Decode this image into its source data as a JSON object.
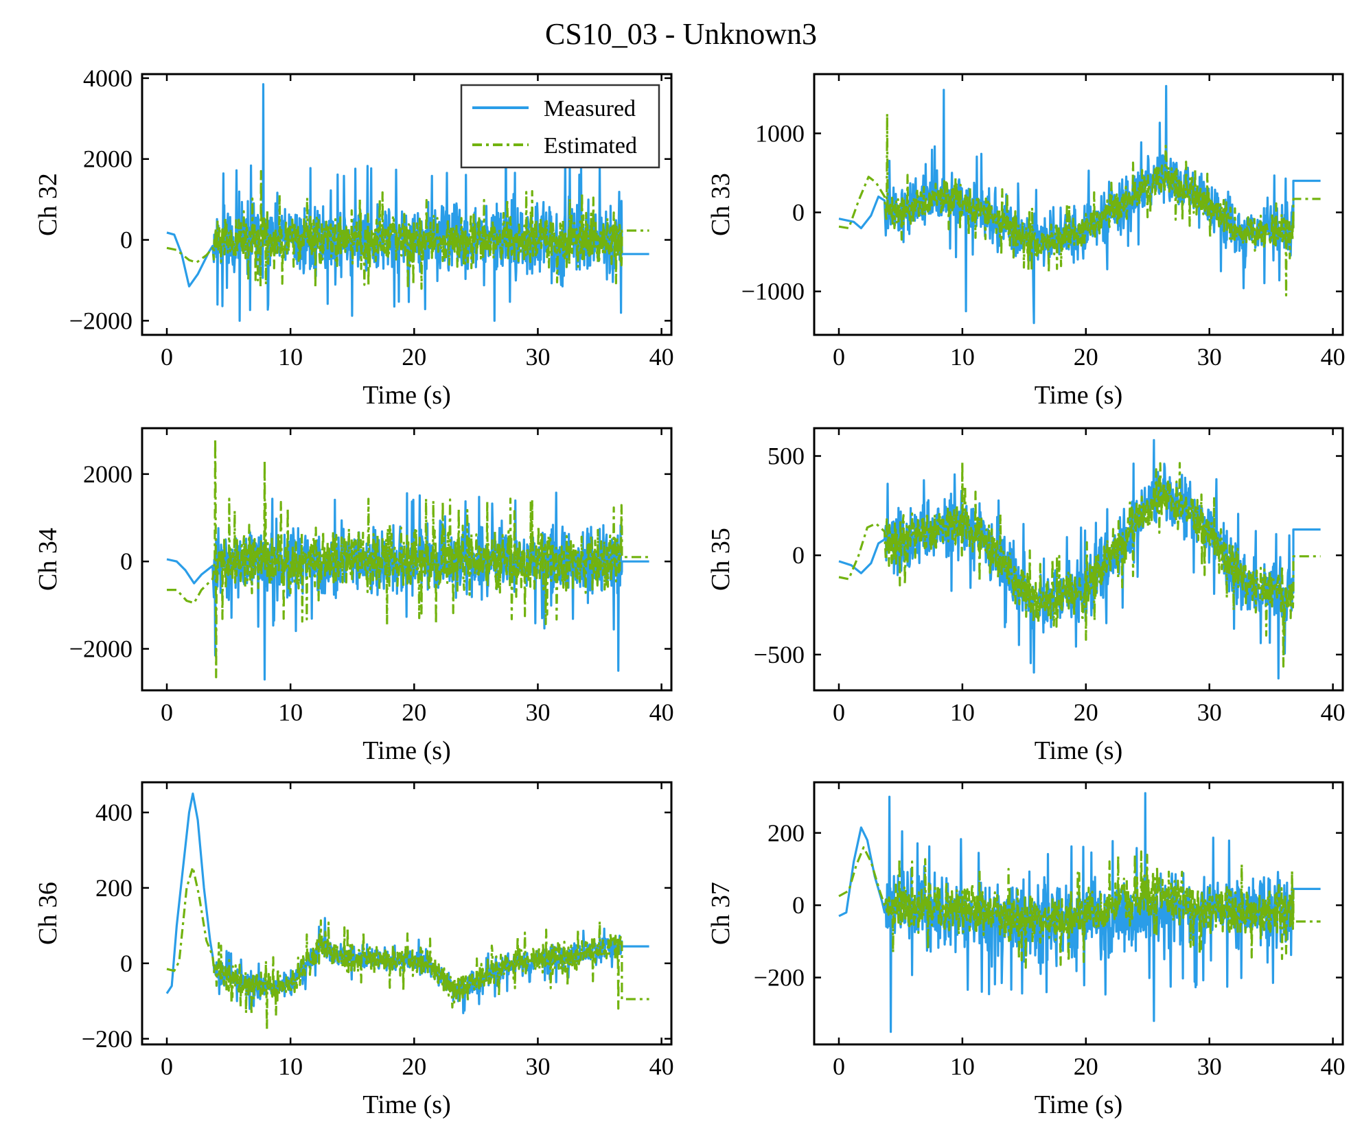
{
  "figure": {
    "title": "CS10_03 - Unknown3",
    "colors": {
      "measured": "#2a9de8",
      "estimated": "#72b30f"
    }
  },
  "legend": {
    "placement": "top-right",
    "items": [
      "Measured",
      "Estimated"
    ]
  },
  "chart_data": [
    {
      "type": "line",
      "ylabel": "Ch 32",
      "xlabel": "Time (s)",
      "xlim": [
        -2,
        40.8
      ],
      "ylim": [
        -2350,
        4100
      ],
      "xticks": [
        0,
        10,
        20,
        30,
        40
      ],
      "yticks": [
        -2000,
        0,
        2000,
        4000
      ],
      "measured": {
        "pre": [
          [
            0,
            180
          ],
          [
            0.6,
            130
          ],
          [
            1.2,
            -350
          ],
          [
            1.8,
            -1150
          ],
          [
            2.5,
            -850
          ],
          [
            3.4,
            -300
          ],
          [
            3.7,
            -150
          ]
        ],
        "noise_center": [
          [
            3.8,
            0
          ],
          [
            36.8,
            0
          ]
        ],
        "noise_amp": 1300,
        "end": [
          36.8,
          -350
        ],
        "end_x": 39,
        "spikes": [
          [
            7.8,
            3850
          ],
          [
            8.2,
            -1600
          ],
          [
            26.5,
            -2000
          ],
          [
            27.4,
            2700
          ],
          [
            32.2,
            2100
          ],
          [
            4.1,
            -1600
          ],
          [
            5.9,
            -2000
          ]
        ],
        "seed": 11
      },
      "estimated": {
        "pre": [
          [
            0,
            -200
          ],
          [
            0.8,
            -250
          ],
          [
            1.8,
            -500
          ],
          [
            2.4,
            -560
          ],
          [
            3.2,
            -380
          ],
          [
            3.7,
            -200
          ]
        ],
        "noise_center": [
          [
            3.8,
            0
          ],
          [
            36.8,
            0
          ]
        ],
        "noise_amp": 850,
        "end": [
          36.8,
          230
        ],
        "end_x": 39,
        "spikes": [
          [
            7.6,
            1700
          ],
          [
            8.0,
            -1100
          ]
        ],
        "seed": 12
      }
    },
    {
      "type": "line",
      "ylabel": "Ch 33",
      "xlabel": "Time (s)",
      "xlim": [
        -2,
        40.8
      ],
      "ylim": [
        -1550,
        1750
      ],
      "xticks": [
        0,
        10,
        20,
        30,
        40
      ],
      "yticks": [
        -1000,
        0,
        1000
      ],
      "measured": {
        "pre": [
          [
            0,
            -80
          ],
          [
            1.2,
            -120
          ],
          [
            1.8,
            -200
          ],
          [
            2.6,
            -40
          ],
          [
            3.2,
            200
          ],
          [
            3.7,
            150
          ]
        ],
        "noise_center": [
          [
            3.8,
            0
          ],
          [
            8.5,
            200
          ],
          [
            11.5,
            50
          ],
          [
            16,
            -400
          ],
          [
            20,
            -200
          ],
          [
            26,
            450
          ],
          [
            29.5,
            150
          ],
          [
            33,
            -300
          ],
          [
            36.8,
            -200
          ]
        ],
        "noise_amp": 500,
        "end": [
          36.8,
          400
        ],
        "end_x": 39,
        "spikes": [
          [
            8.5,
            1550
          ],
          [
            26.5,
            1600
          ],
          [
            15.8,
            -1400
          ],
          [
            10.3,
            -1250
          ]
        ],
        "seed": 21
      },
      "estimated": {
        "pre": [
          [
            0,
            -180
          ],
          [
            0.8,
            -200
          ],
          [
            1.6,
            150
          ],
          [
            2.4,
            450
          ],
          [
            3.0,
            380
          ],
          [
            3.7,
            200
          ]
        ],
        "noise_center": [
          [
            3.8,
            0
          ],
          [
            8.5,
            200
          ],
          [
            11.5,
            50
          ],
          [
            16,
            -400
          ],
          [
            20,
            -200
          ],
          [
            26,
            450
          ],
          [
            29.5,
            150
          ],
          [
            33,
            -300
          ],
          [
            36.8,
            -200
          ]
        ],
        "noise_amp": 300,
        "end": [
          36.8,
          170
        ],
        "end_x": 39,
        "spikes": [
          [
            3.9,
            1250
          ],
          [
            36.2,
            -1050
          ]
        ],
        "seed": 22
      }
    },
    {
      "type": "line",
      "ylabel": "Ch 34",
      "xlabel": "Time (s)",
      "xlim": [
        -2,
        40.8
      ],
      "ylim": [
        -2950,
        3050
      ],
      "xticks": [
        0,
        10,
        20,
        30,
        40
      ],
      "yticks": [
        -2000,
        0,
        2000
      ],
      "measured": {
        "pre": [
          [
            0,
            50
          ],
          [
            0.8,
            0
          ],
          [
            1.5,
            -200
          ],
          [
            2.2,
            -500
          ],
          [
            2.8,
            -300
          ],
          [
            3.7,
            -100
          ]
        ],
        "noise_center": [
          [
            3.8,
            0
          ],
          [
            36.8,
            0
          ]
        ],
        "noise_amp": 1100,
        "end": [
          36.8,
          0
        ],
        "end_x": 39,
        "spikes": [
          [
            3.9,
            -2150
          ],
          [
            7.9,
            -2700
          ],
          [
            36.5,
            -2500
          ]
        ],
        "seed": 31
      },
      "estimated": {
        "pre": [
          [
            0,
            -650
          ],
          [
            0.8,
            -650
          ],
          [
            1.6,
            -900
          ],
          [
            2.2,
            -950
          ],
          [
            2.8,
            -650
          ],
          [
            3.7,
            -400
          ]
        ],
        "noise_center": [
          [
            3.8,
            0
          ],
          [
            36.8,
            0
          ]
        ],
        "noise_amp": 1000,
        "end": [
          36.8,
          100
        ],
        "end_x": 39,
        "spikes": [
          [
            3.9,
            2800
          ],
          [
            4.0,
            -2650
          ],
          [
            7.9,
            2300
          ]
        ],
        "seed": 32
      }
    },
    {
      "type": "line",
      "ylabel": "Ch 35",
      "xlabel": "Time (s)",
      "xlim": [
        -2,
        40.8
      ],
      "ylim": [
        -680,
        640
      ],
      "xticks": [
        0,
        10,
        20,
        30,
        40
      ],
      "yticks": [
        -500,
        0,
        500
      ],
      "measured": {
        "pre": [
          [
            0,
            -30
          ],
          [
            1.0,
            -50
          ],
          [
            1.8,
            -90
          ],
          [
            2.6,
            -40
          ],
          [
            3.2,
            60
          ],
          [
            3.7,
            80
          ]
        ],
        "noise_center": [
          [
            3.8,
            50
          ],
          [
            9,
            150
          ],
          [
            11.5,
            100
          ],
          [
            16,
            -250
          ],
          [
            20,
            -180
          ],
          [
            26,
            320
          ],
          [
            29,
            200
          ],
          [
            33,
            -150
          ],
          [
            36.8,
            -200
          ]
        ],
        "noise_amp": 230,
        "end": [
          36.8,
          130
        ],
        "end_x": 39,
        "spikes": [
          [
            25.5,
            580
          ],
          [
            15.8,
            -590
          ],
          [
            35.6,
            -620
          ]
        ],
        "seed": 41
      },
      "estimated": {
        "pre": [
          [
            0,
            -110
          ],
          [
            0.8,
            -120
          ],
          [
            1.6,
            0
          ],
          [
            2.3,
            140
          ],
          [
            3.0,
            160
          ],
          [
            3.7,
            120
          ]
        ],
        "noise_center": [
          [
            3.8,
            50
          ],
          [
            9,
            150
          ],
          [
            11.5,
            100
          ],
          [
            16,
            -250
          ],
          [
            20,
            -180
          ],
          [
            26,
            320
          ],
          [
            29,
            200
          ],
          [
            33,
            -150
          ],
          [
            36.8,
            -200
          ]
        ],
        "noise_amp": 170,
        "end": [
          36.8,
          -5
        ],
        "end_x": 39,
        "spikes": [
          [
            10.0,
            470
          ],
          [
            36.0,
            -560
          ]
        ],
        "seed": 42
      }
    },
    {
      "type": "line",
      "ylabel": "Ch 36",
      "xlabel": "Time (s)",
      "xlim": [
        -2,
        40.8
      ],
      "ylim": [
        -215,
        480
      ],
      "xticks": [
        0,
        10,
        20,
        30,
        40
      ],
      "yticks": [
        -200,
        0,
        200,
        400
      ],
      "measured": {
        "pre": [
          [
            0,
            -80
          ],
          [
            0.4,
            -60
          ],
          [
            0.8,
            100
          ],
          [
            1.3,
            250
          ],
          [
            1.8,
            400
          ],
          [
            2.1,
            450
          ],
          [
            2.5,
            380
          ],
          [
            3.0,
            200
          ],
          [
            3.5,
            60
          ],
          [
            3.7,
            20
          ]
        ],
        "noise_center": [
          [
            3.8,
            -20
          ],
          [
            7,
            -60
          ],
          [
            10,
            -60
          ],
          [
            12.5,
            50
          ],
          [
            14,
            20
          ],
          [
            18,
            10
          ],
          [
            21,
            0
          ],
          [
            23.5,
            -80
          ],
          [
            28,
            0
          ],
          [
            33,
            20
          ],
          [
            36.8,
            50
          ]
        ],
        "noise_amp": 45,
        "end": [
          36.8,
          45
        ],
        "end_x": 39,
        "spikes": [
          [
            12.8,
            120
          ]
        ],
        "seed": 51
      },
      "estimated": {
        "pre": [
          [
            0,
            -15
          ],
          [
            0.6,
            -20
          ],
          [
            1.0,
            5
          ],
          [
            1.6,
            200
          ],
          [
            2.1,
            255
          ],
          [
            2.6,
            180
          ],
          [
            3.2,
            60
          ],
          [
            3.7,
            20
          ]
        ],
        "noise_center": [
          [
            3.8,
            -20
          ],
          [
            7,
            -60
          ],
          [
            10,
            -60
          ],
          [
            12.5,
            50
          ],
          [
            14,
            20
          ],
          [
            18,
            10
          ],
          [
            21,
            0
          ],
          [
            23.5,
            -80
          ],
          [
            28,
            0
          ],
          [
            33,
            20
          ],
          [
            36.8,
            50
          ]
        ],
        "noise_amp": 55,
        "end": [
          36.8,
          -95
        ],
        "end_x": 39,
        "spikes": [
          [
            8.1,
            -175
          ],
          [
            36.5,
            -120
          ]
        ],
        "seed": 52
      }
    },
    {
      "type": "line",
      "ylabel": "Ch 37",
      "xlabel": "Time (s)",
      "xlim": [
        -2,
        40.8
      ],
      "ylim": [
        -385,
        340
      ],
      "xticks": [
        0,
        10,
        20,
        30,
        40
      ],
      "yticks": [
        -200,
        0,
        200
      ],
      "measured": {
        "pre": [
          [
            0,
            -30
          ],
          [
            0.6,
            -20
          ],
          [
            1.2,
            120
          ],
          [
            1.8,
            215
          ],
          [
            2.3,
            180
          ],
          [
            2.9,
            80
          ],
          [
            3.5,
            10
          ],
          [
            3.7,
            -20
          ]
        ],
        "noise_center": [
          [
            3.8,
            0
          ],
          [
            10,
            -30
          ],
          [
            16,
            -50
          ],
          [
            20,
            -40
          ],
          [
            26,
            -20
          ],
          [
            30,
            -20
          ],
          [
            33,
            -20
          ],
          [
            36.8,
            -30
          ]
        ],
        "noise_amp": 150,
        "end": [
          36.8,
          45
        ],
        "end_x": 39,
        "spikes": [
          [
            4.1,
            300
          ],
          [
            4.2,
            -350
          ],
          [
            24.8,
            310
          ],
          [
            25.5,
            -320
          ]
        ],
        "seed": 61
      },
      "estimated": {
        "pre": [
          [
            0,
            25
          ],
          [
            0.8,
            40
          ],
          [
            1.4,
            110
          ],
          [
            2.0,
            160
          ],
          [
            2.6,
            120
          ],
          [
            3.3,
            40
          ],
          [
            3.7,
            0
          ]
        ],
        "noise_center": [
          [
            3.8,
            0
          ],
          [
            10,
            -10
          ],
          [
            16,
            -40
          ],
          [
            20,
            -20
          ],
          [
            26,
            40
          ],
          [
            30,
            -10
          ],
          [
            33,
            -20
          ],
          [
            36.8,
            -20
          ]
        ],
        "noise_amp": 95,
        "end": [
          36.8,
          -45
        ],
        "end_x": 39,
        "spikes": [],
        "seed": 62
      }
    }
  ]
}
